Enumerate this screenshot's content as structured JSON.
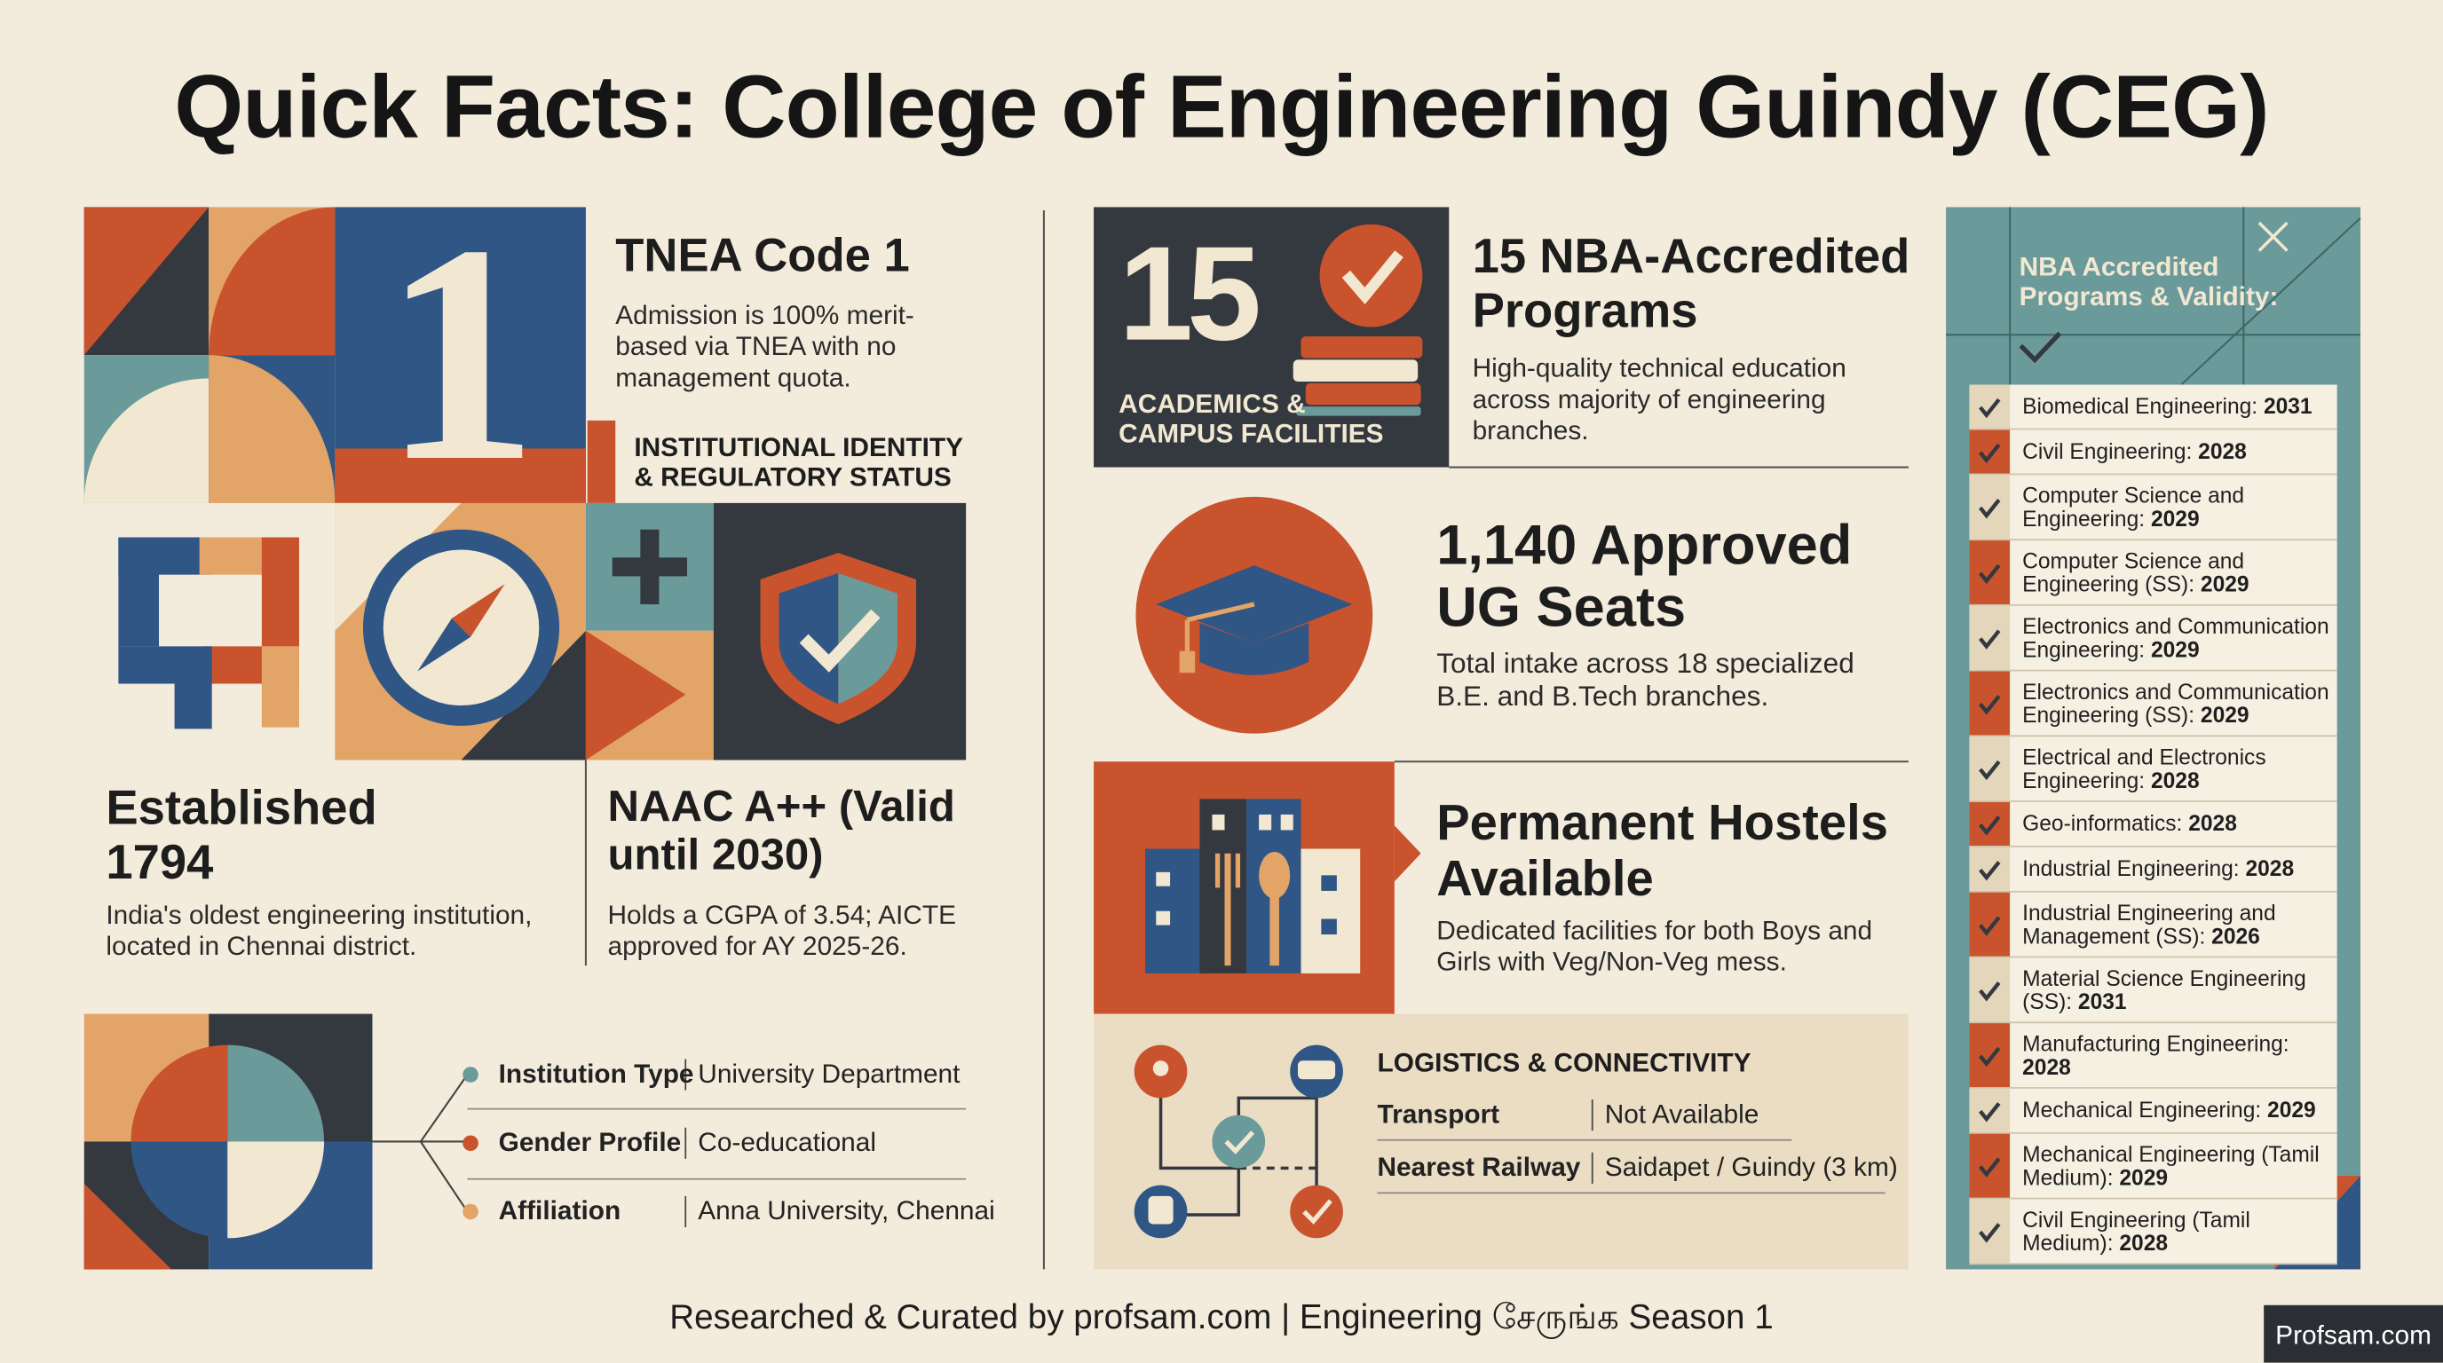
{
  "header": {
    "title": "Quick Facts: College of Engineering Guindy (CEG)"
  },
  "tnea": {
    "number": "1",
    "title": "TNEA Code 1",
    "text": "Admission is 100% merit-based via TNEA with no management quota."
  },
  "identity_banner": "INSTITUTIONAL IDENTITY & REGULATORY STATUS",
  "established": {
    "title": "Established 1794",
    "text": "India's oldest engineering institution, located in Chennai district."
  },
  "naac": {
    "title": "NAAC A++ (Valid until 2030)",
    "text": "Holds a CGPA of 3.54; AICTE approved for AY 2025-26."
  },
  "profile": {
    "rows": [
      {
        "label": "Institution Type",
        "value": "University Department"
      },
      {
        "label": "Gender Profile",
        "value": "Co-educational"
      },
      {
        "label": "Affiliation",
        "value": "Anna University, Chennai"
      }
    ]
  },
  "academics": {
    "number": "15",
    "label": "ACADEMICS & CAMPUS FACILITIES",
    "title": "15 NBA-Accredited Programs",
    "text": "High-quality technical education across majority of engineering branches."
  },
  "seats": {
    "title": "1,140 Approved UG Seats",
    "text": "Total intake across 18 specialized B.E. and B.Tech branches."
  },
  "hostels": {
    "title": "Permanent Hostels Available",
    "text": "Dedicated facilities for both Boys and Girls with Veg/Non-Veg mess."
  },
  "logistics": {
    "title": "LOGISTICS & CONNECTIVITY",
    "rows": [
      {
        "label": "Transport",
        "value": "Not Available"
      },
      {
        "label": "Nearest Railway",
        "value": "Saidapet / Guindy (3 km)"
      }
    ]
  },
  "nba": {
    "title": "NBA Accredited Programs & Validity:",
    "programs": [
      {
        "name": "Biomedical Engineering:",
        "year": "2031"
      },
      {
        "name": "Civil Engineering:",
        "year": "2028"
      },
      {
        "name": "Computer Science and Engineering:",
        "year": "2029"
      },
      {
        "name": "Computer Science and Engineering (SS):",
        "year": "2029"
      },
      {
        "name": "Electronics and Communication Engineering:",
        "year": "2029"
      },
      {
        "name": "Electronics and Communication Engineering (SS):",
        "year": "2029"
      },
      {
        "name": "Electrical and Electronics Engineering:",
        "year": "2028"
      },
      {
        "name": "Geo-informatics:",
        "year": "2028"
      },
      {
        "name": "Industrial Engineering:",
        "year": "2028"
      },
      {
        "name": "Industrial Engineering and Management (SS):",
        "year": "2026"
      },
      {
        "name": "Material Science Engineering (SS):",
        "year": "2031"
      },
      {
        "name": "Manufacturing Engineering:",
        "year": "2028"
      },
      {
        "name": "Mechanical Engineering:",
        "year": "2029"
      },
      {
        "name": "Mechanical Engineering (Tamil Medium):",
        "year": "2029"
      },
      {
        "name": "Civil Engineering (Tamil Medium):",
        "year": "2028"
      }
    ]
  },
  "footer": {
    "credit": "Researched & Curated by profsam.com | Engineering சேருங்க Season 1",
    "logo": "Profsam.com"
  }
}
